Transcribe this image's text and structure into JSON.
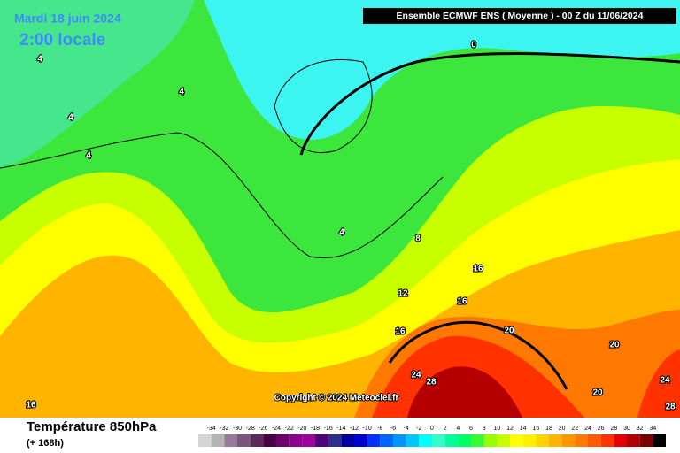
{
  "header": {
    "run": "Ensemble ECMWF ENS  ( Moyenne )  -  00 Z du 11/06/2024",
    "date": "Mardi 18 juin 2024",
    "time": "2:00 locale",
    "copyright": "Copyright © 2024 Meteociel.fr"
  },
  "legend": {
    "title": "Température 850hPa",
    "subtitle": "(+ 168h)",
    "labels": [
      "-34",
      "-32",
      "-30",
      "-28",
      "-26",
      "-24",
      "-22",
      "-20",
      "-18",
      "-16",
      "-14",
      "-12",
      "-10",
      "-8",
      "-6",
      "-4",
      "-2",
      "0",
      "2",
      "4",
      "6",
      "8",
      "10",
      "12",
      "14",
      "16",
      "18",
      "20",
      "22",
      "24",
      "26",
      "28",
      "30",
      "32",
      "34"
    ],
    "colors": [
      "#d4d4d4",
      "#b4b4b4",
      "#9a7a9a",
      "#7a567a",
      "#5a2a5a",
      "#460046",
      "#6e006e",
      "#8c008c",
      "#a000a0",
      "#500078",
      "#2d2d8c",
      "#0000a0",
      "#0000d2",
      "#0032ff",
      "#0064ff",
      "#0096ff",
      "#00c8ff",
      "#00ffff",
      "#32ffc8",
      "#00ff96",
      "#00ff64",
      "#32ff32",
      "#96ff00",
      "#c8ff00",
      "#ffff00",
      "#fff000",
      "#ffd200",
      "#ffb400",
      "#ff9600",
      "#ff7800",
      "#ff5a00",
      "#ff3200",
      "#e60000",
      "#b40000",
      "#780000",
      "#000000"
    ]
  },
  "contour_labels": [
    "0",
    "4",
    "4",
    "4",
    "4",
    "4",
    "8",
    "12",
    "16",
    "16",
    "16",
    "20",
    "20",
    "20",
    "24",
    "28",
    "24",
    "28",
    "16"
  ]
}
